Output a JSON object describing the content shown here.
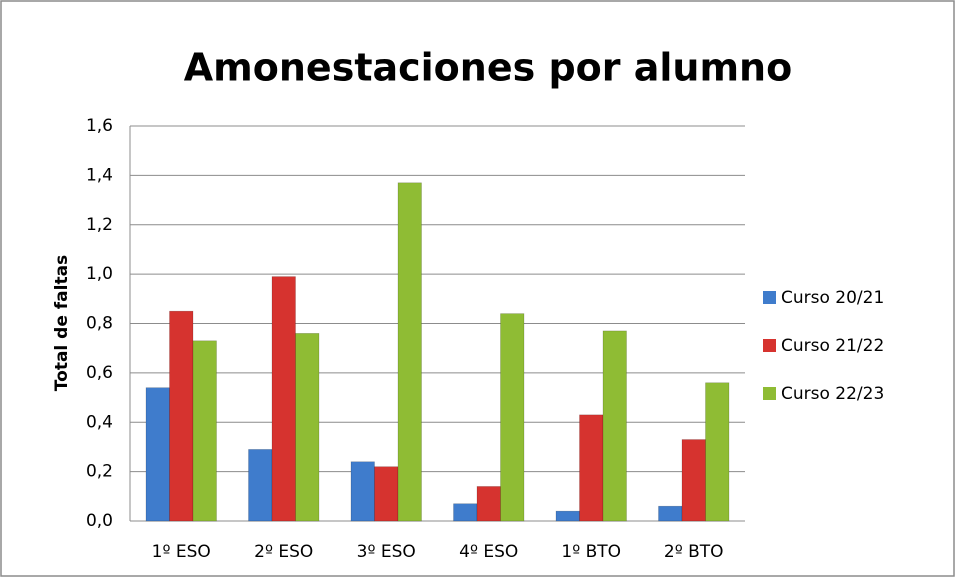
{
  "chart_data": {
    "type": "bar",
    "title": "Amonestaciones por alumno",
    "y_label": "Total de faltas",
    "categories": [
      "1º ESO",
      "2º ESO",
      "3º ESO",
      "4º ESO",
      "1º BTO",
      "2º BTO"
    ],
    "series": [
      {
        "name": "Curso 20/21",
        "color": "#3f7ccc",
        "values": [
          0.54,
          0.29,
          0.24,
          0.07,
          0.04,
          0.06
        ]
      },
      {
        "name": "Curso 21/22",
        "color": "#d6332f",
        "values": [
          0.85,
          0.99,
          0.22,
          0.14,
          0.43,
          0.33
        ]
      },
      {
        "name": "Curso 22/23",
        "color": "#8fbc34",
        "values": [
          0.73,
          0.76,
          1.37,
          0.84,
          0.77,
          0.56
        ]
      }
    ],
    "ylim": [
      0,
      1.6
    ],
    "yticks": [
      {
        "value": 0,
        "label": "0,0"
      },
      {
        "value": 0.2,
        "label": "0,2"
      },
      {
        "value": 0.4,
        "label": "0,4"
      },
      {
        "value": 0.6,
        "label": "0,6"
      },
      {
        "value": 0.8,
        "label": "0,8"
      },
      {
        "value": 1.0,
        "label": "1,0"
      },
      {
        "value": 1.2,
        "label": "1,2"
      },
      {
        "value": 1.4,
        "label": "1,4"
      },
      {
        "value": 1.6,
        "label": "1,6"
      }
    ],
    "grid": true,
    "legend": "right"
  }
}
